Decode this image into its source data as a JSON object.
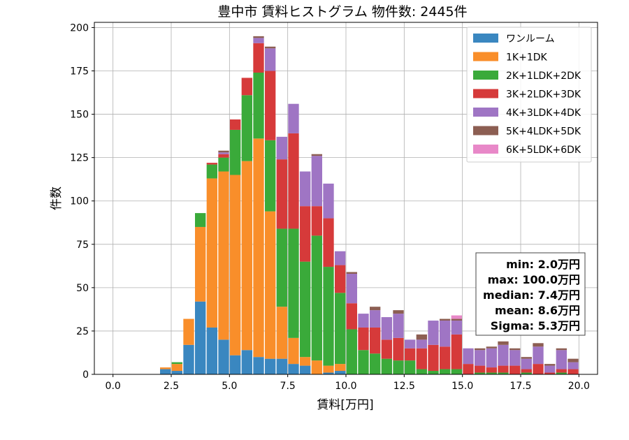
{
  "chart_data": {
    "type": "bar",
    "stacked": true,
    "title": "豊中市 賃料ヒストグラム 物件数: 2445件",
    "xlabel": "賃料[万円]",
    "ylabel": "件数",
    "xlim": [
      -0.8,
      20.8
    ],
    "ylim": [
      0,
      203
    ],
    "x_ticks": [
      0.0,
      2.5,
      5.0,
      7.5,
      10.0,
      12.5,
      15.0,
      17.5,
      20.0
    ],
    "x_tick_labels": [
      "0.0",
      "2.5",
      "5.0",
      "7.5",
      "10.0",
      "12.5",
      "15.0",
      "17.5",
      "20.0"
    ],
    "y_ticks": [
      0,
      25,
      50,
      75,
      100,
      125,
      150,
      175,
      200
    ],
    "y_tick_labels": [
      "0",
      "25",
      "50",
      "75",
      "100",
      "125",
      "150",
      "175",
      "200"
    ],
    "grid": true,
    "legend_position": "top-right",
    "bin_width": 0.5,
    "bin_starts": [
      2.0,
      2.5,
      3.0,
      3.5,
      4.0,
      4.5,
      5.0,
      5.5,
      6.0,
      6.5,
      7.0,
      7.5,
      8.0,
      8.5,
      9.0,
      9.5,
      10.0,
      10.5,
      11.0,
      11.5,
      12.0,
      12.5,
      13.0,
      13.5,
      14.0,
      14.5,
      15.0,
      15.5,
      16.0,
      16.5,
      17.0,
      17.5,
      18.0,
      18.5,
      19.0,
      19.5
    ],
    "series": [
      {
        "name": "ワンルーム",
        "color": "#3a87c0",
        "values": [
          3,
          2,
          17,
          42,
          27,
          20,
          11,
          14,
          10,
          9,
          9,
          6,
          5,
          0,
          1,
          2,
          0,
          0,
          0,
          0,
          0,
          0,
          0,
          0,
          0,
          0,
          0,
          0,
          0,
          0,
          0,
          0,
          0,
          0,
          0,
          0
        ]
      },
      {
        "name": "1K+1DK",
        "color": "#f98e2a",
        "values": [
          1,
          4,
          15,
          43,
          86,
          97,
          104,
          109,
          126,
          85,
          30,
          15,
          5,
          8,
          4,
          4,
          0,
          0,
          0,
          0,
          0,
          0,
          0,
          0,
          0,
          0,
          0,
          0,
          0,
          0,
          0,
          0,
          0,
          0,
          0,
          0
        ]
      },
      {
        "name": "2K+1LDK+2DK",
        "color": "#3aaa3a",
        "values": [
          0,
          1,
          0,
          8,
          8,
          8,
          26,
          38,
          38,
          41,
          45,
          63,
          55,
          72,
          57,
          41,
          26,
          14,
          12,
          9,
          8,
          8,
          3,
          2,
          3,
          3,
          0,
          1,
          1,
          1,
          0,
          1,
          0,
          0,
          1,
          0
        ]
      },
      {
        "name": "3K+2LDK+3DK",
        "color": "#d63a3a",
        "values": [
          0,
          0,
          0,
          0,
          1,
          2,
          6,
          10,
          17,
          40,
          40,
          55,
          32,
          17,
          28,
          16,
          15,
          13,
          15,
          11,
          13,
          7,
          12,
          15,
          13,
          20,
          6,
          4,
          3,
          4,
          5,
          2,
          6,
          1,
          2,
          3
        ]
      },
      {
        "name": "4K+3LDK+4DK",
        "color": "#9f75c4",
        "values": [
          0,
          0,
          0,
          0,
          0,
          1,
          0,
          0,
          3,
          13,
          13,
          17,
          20,
          29,
          20,
          8,
          17,
          8,
          10,
          13,
          14,
          5,
          5,
          14,
          15,
          8,
          9,
          9,
          11,
          12,
          9,
          6,
          10,
          4,
          11,
          4
        ]
      },
      {
        "name": "5K+4LDK+5DK",
        "color": "#8c5e52",
        "values": [
          0,
          0,
          0,
          0,
          0,
          1,
          0,
          0,
          1,
          1,
          0,
          0,
          0,
          1,
          0,
          0,
          1,
          0,
          2,
          0,
          2,
          0,
          3,
          0,
          1,
          1,
          0,
          1,
          1,
          2,
          1,
          1,
          2,
          1,
          1,
          2
        ]
      },
      {
        "name": "6K+5LDK+6DK",
        "color": "#e888c8",
        "values": [
          0,
          0,
          0,
          0,
          0,
          0,
          0,
          0,
          0,
          0,
          0,
          0,
          0,
          0,
          0,
          0,
          0,
          0,
          0,
          0,
          0,
          0,
          0,
          0,
          0,
          2,
          0,
          0,
          0,
          0,
          0,
          0,
          0,
          0,
          0,
          0
        ]
      }
    ],
    "stats": {
      "min": "min: 2.0万円",
      "max": "max: 100.0万円",
      "median": "median: 7.4万円",
      "mean": "mean: 8.6万円",
      "sigma": "Sigma: 5.3万円"
    }
  }
}
